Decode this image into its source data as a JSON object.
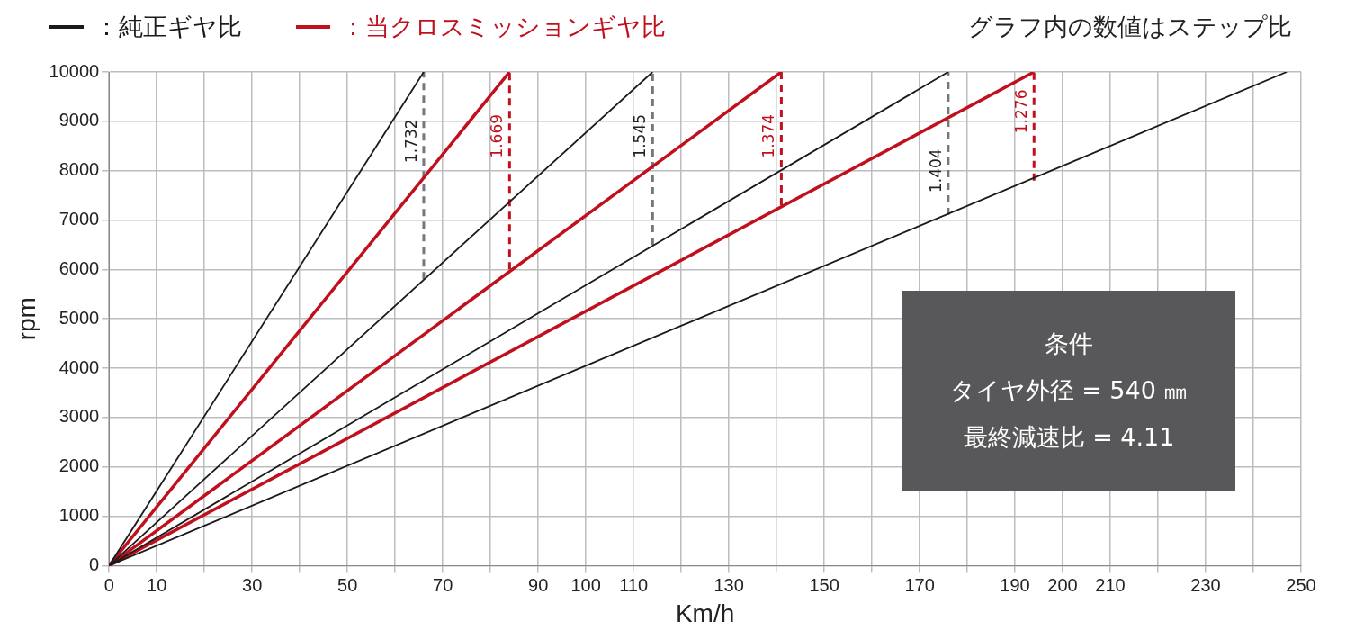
{
  "chart_data": {
    "type": "line",
    "xlabel": "Km/h",
    "ylabel": "rpm",
    "legend": "top left",
    "grid": true,
    "marker": "none",
    "xlim": [
      0,
      250
    ],
    "ylim": [
      0,
      10000
    ],
    "xticks": [
      0,
      10,
      {
        "value": 20,
        "label": null
      },
      30,
      {
        "value": 40,
        "label": null
      },
      50,
      {
        "value": 60,
        "label": null
      },
      70,
      {
        "value": 80,
        "label": null
      },
      90,
      100,
      110,
      {
        "value": 120,
        "label": null
      },
      130,
      {
        "value": 140,
        "label": null
      },
      150,
      {
        "value": 160,
        "label": null
      },
      170,
      {
        "value": 180,
        "label": null
      },
      190,
      200,
      210,
      {
        "value": 220,
        "label": null
      },
      230,
      {
        "value": 240,
        "label": null
      },
      250
    ],
    "yticks": [
      0,
      1000,
      2000,
      3000,
      4000,
      5000,
      6000,
      7000,
      8000,
      9000,
      10000
    ],
    "series": [
      {
        "name": "：純正ギヤ比",
        "color": "#1a1a1a",
        "x": [
          0,
          66
        ],
        "values": [
          0,
          10000
        ]
      },
      {
        "color": "#1a1a1a",
        "x": [
          0,
          114
        ],
        "values": [
          0,
          10000
        ]
      },
      {
        "color": "#1a1a1a",
        "x": [
          0,
          176
        ],
        "values": [
          0,
          10000
        ]
      },
      {
        "color": "#1a1a1a",
        "x": [
          0,
          247
        ],
        "values": [
          0,
          10000
        ]
      },
      {
        "name": "：当クロスミッションギヤ比",
        "color": "#c0101e",
        "x": [
          0,
          84
        ],
        "values": [
          0,
          10000
        ]
      },
      {
        "color": "#c0101e",
        "x": [
          0,
          141
        ],
        "values": [
          0,
          10000
        ]
      },
      {
        "color": "#c0101e",
        "x": [
          0,
          194
        ],
        "values": [
          0,
          10000
        ]
      },
      {
        "color": "#777777",
        "line_style": "dashed",
        "x": [
          66,
          66
        ],
        "values": [
          5800,
          10000
        ]
      },
      {
        "color": "#c0101e",
        "line_style": "dashed",
        "x": [
          84,
          84
        ],
        "values": [
          6000,
          10000
        ]
      },
      {
        "color": "#777777",
        "line_style": "dashed",
        "x": [
          114,
          114
        ],
        "values": [
          6500,
          10000
        ]
      },
      {
        "color": "#c0101e",
        "line_style": "dashed",
        "x": [
          141,
          141
        ],
        "values": [
          7300,
          10000
        ]
      },
      {
        "color": "#777777",
        "line_style": "dashed",
        "x": [
          176,
          176
        ],
        "values": [
          7100,
          10000
        ]
      },
      {
        "color": "#c0101e",
        "line_style": "dashed",
        "x": [
          194,
          194
        ],
        "values": [
          7800,
          10000
        ]
      }
    ],
    "annotations": [
      "グラフ内の数値はステップ比",
      "条件",
      "タイヤ外径 = 540 ㎜",
      "最終減速比 = 4.11",
      {
        "text": "1.732",
        "x": 66,
        "y": 8600
      },
      {
        "text": "1.669",
        "x": 84,
        "y": 8700
      },
      {
        "text": "1.545",
        "x": 114,
        "y": 8700
      },
      {
        "text": "1.374",
        "x": 141,
        "y": 8700
      },
      {
        "text": "1.404",
        "x": 176,
        "y": 8000
      },
      {
        "text": "1.276",
        "x": 194,
        "y": 9200
      }
    ]
  }
}
